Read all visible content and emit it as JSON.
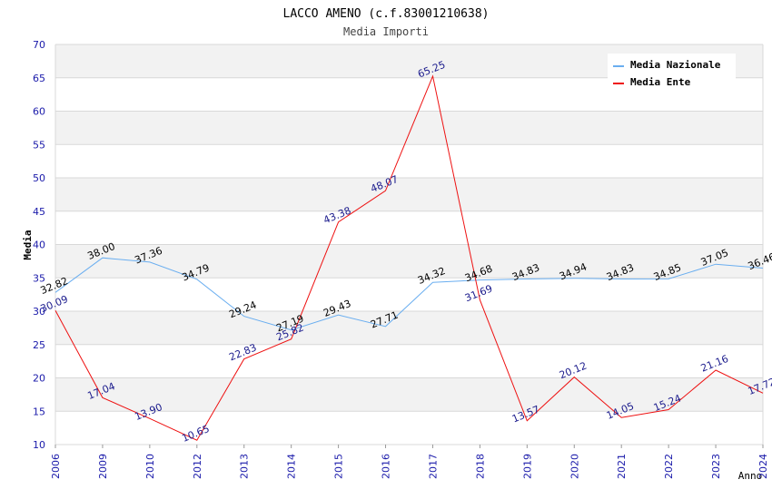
{
  "chart_data": {
    "type": "line",
    "title": "LACCO AMENO (c.f.83001210638)",
    "subtitle": "Media Importi",
    "xlabel": "Anno",
    "ylabel": "Media",
    "ylim": [
      10,
      70
    ],
    "yticks": [
      "10",
      "15",
      "20",
      "25",
      "30",
      "35",
      "40",
      "45",
      "50",
      "55",
      "60",
      "65",
      "70"
    ],
    "categories": [
      "2006",
      "2009",
      "2010",
      "2012",
      "2013",
      "2014",
      "2015",
      "2016",
      "2017",
      "2018",
      "2019",
      "2020",
      "2021",
      "2022",
      "2023",
      "2024"
    ],
    "legend_position": "top-right",
    "series": [
      {
        "name": "Media Nazionale",
        "color": "#6aaef0",
        "label_color": "#000000",
        "values": [
          32.82,
          38.0,
          37.36,
          34.79,
          29.24,
          27.19,
          29.43,
          27.71,
          34.32,
          34.68,
          34.83,
          34.94,
          34.83,
          34.85,
          37.05,
          36.46
        ],
        "labels": [
          "32.82",
          "38.00",
          "37.36",
          "34.79",
          "29.24",
          "27.19",
          "29.43",
          "27.71",
          "34.32",
          "34.68",
          "34.83",
          "34.94",
          "34.83",
          "34.85",
          "37.05",
          "36.46"
        ]
      },
      {
        "name": "Media Ente",
        "color": "#ee1111",
        "label_color": "#1a1a8c",
        "values": [
          30.09,
          17.04,
          13.9,
          10.65,
          22.83,
          25.82,
          43.38,
          48.07,
          65.25,
          31.69,
          13.57,
          20.12,
          14.05,
          15.24,
          21.16,
          17.72
        ],
        "labels": [
          "30.09",
          "17.04",
          "13.90",
          "10.65",
          "22.83",
          "25.82",
          "43.38",
          "48.07",
          "65.25",
          "31.69",
          "13.57",
          "20.12",
          "14.05",
          "15.24",
          "21.16",
          "17.72"
        ]
      }
    ],
    "colors": {
      "band": "#f2f2f2",
      "grid": "#d8d8d8",
      "tick_text": "#1a1aaa",
      "title": "#000000",
      "subtitle": "#444444"
    }
  }
}
